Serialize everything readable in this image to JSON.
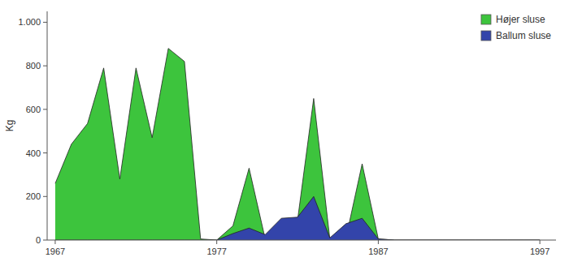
{
  "chart_data": {
    "type": "area",
    "x": [
      1967,
      1968,
      1969,
      1970,
      1971,
      1972,
      1973,
      1974,
      1975,
      1976,
      1977,
      1978,
      1979,
      1980,
      1981,
      1982,
      1983,
      1984,
      1985,
      1986,
      1987,
      1988,
      1989,
      1990,
      1991,
      1992,
      1993,
      1994,
      1995,
      1996,
      1997
    ],
    "series": [
      {
        "name": "Højer sluse",
        "color": "#3dc43d",
        "values": [
          260,
          440,
          535,
          790,
          280,
          790,
          470,
          880,
          820,
          5,
          0,
          65,
          330,
          5,
          5,
          90,
          650,
          5,
          10,
          350,
          5,
          0,
          0,
          0,
          0,
          0,
          0,
          0,
          0,
          0,
          0
        ]
      },
      {
        "name": "Ballum sluse",
        "color": "#3344aa",
        "values": [
          0,
          0,
          0,
          0,
          0,
          0,
          0,
          0,
          0,
          0,
          0,
          30,
          55,
          25,
          100,
          105,
          200,
          10,
          75,
          100,
          5,
          0,
          0,
          0,
          0,
          0,
          0,
          0,
          0,
          0,
          0
        ]
      }
    ],
    "y_label": "Kg",
    "ylim": [
      0,
      1050
    ],
    "yticks": [
      0,
      200,
      400,
      600,
      800,
      {
        "value": 1000,
        "label": "1.000"
      }
    ],
    "xlim": [
      1966.5,
      1998
    ],
    "xticks": [
      1967,
      1977,
      1987,
      1997
    ],
    "stacked": false,
    "grid": false,
    "legend": "upper right"
  }
}
